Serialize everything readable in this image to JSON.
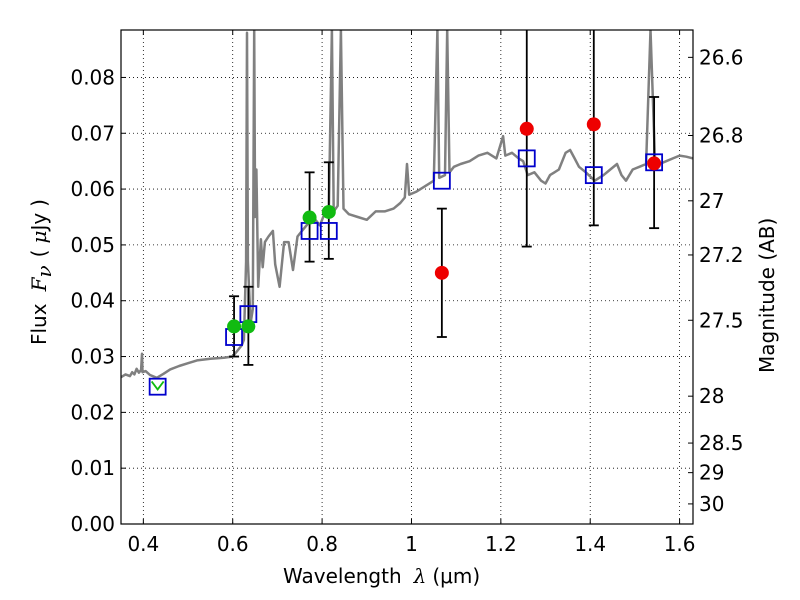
{
  "chart_data": {
    "type": "scatter",
    "xlim": [
      0.35,
      1.63
    ],
    "ylim": [
      0.0,
      0.0885
    ],
    "x_ticks": [
      0.4,
      0.6,
      0.8,
      1.0,
      1.2,
      1.4,
      1.6
    ],
    "x_tick_labels": [
      "0.4",
      "0.6",
      "0.8",
      "1",
      "1.2",
      "1.4",
      "1.6"
    ],
    "y_ticks": [
      0.0,
      0.01,
      0.02,
      0.03,
      0.04,
      0.05,
      0.06,
      0.07,
      0.08
    ],
    "y_tick_labels": [
      "0.00",
      "0.01",
      "0.02",
      "0.03",
      "0.04",
      "0.05",
      "0.06",
      "0.07",
      "0.08"
    ],
    "right_axis": {
      "label": "Magnitude (AB)",
      "ticks": [
        {
          "label": "26.6",
          "flux": 0.0836
        },
        {
          "label": "26.8",
          "flux": 0.0696
        },
        {
          "label": "27",
          "flux": 0.0579
        },
        {
          "label": "27.2",
          "flux": 0.0482
        },
        {
          "label": "27.5",
          "flux": 0.0365
        },
        {
          "label": "28",
          "flux": 0.0229
        },
        {
          "label": "28.5",
          "flux": 0.0145
        },
        {
          "label": "29",
          "flux": 0.0092
        },
        {
          "label": "30",
          "flux": 0.0036
        }
      ]
    },
    "xlabel": {
      "text": "Wavelength",
      "symbol": "λ",
      "unit": "(μm)"
    },
    "ylabel": {
      "text": "Flux",
      "symbol": "F",
      "subscript": "ν",
      "unit_open": "(",
      "unit_mu": "μ",
      "unit": "Jy",
      "unit_close": ")"
    },
    "grid": true,
    "colors": {
      "spectrum": "#808080",
      "model": "#0000cc",
      "green": "#11bb11",
      "red": "#ee0000",
      "errorbar": "#000000"
    },
    "spectrum": [
      [
        0.35,
        0.0263
      ],
      [
        0.36,
        0.0268
      ],
      [
        0.37,
        0.0265
      ],
      [
        0.375,
        0.0272
      ],
      [
        0.38,
        0.0268
      ],
      [
        0.385,
        0.0278
      ],
      [
        0.39,
        0.0271
      ],
      [
        0.395,
        0.0276
      ],
      [
        0.397,
        0.0305
      ],
      [
        0.398,
        0.0272
      ],
      [
        0.405,
        0.0274
      ],
      [
        0.415,
        0.0267
      ],
      [
        0.43,
        0.0262
      ],
      [
        0.445,
        0.0269
      ],
      [
        0.46,
        0.0277
      ],
      [
        0.48,
        0.0283
      ],
      [
        0.5,
        0.0288
      ],
      [
        0.52,
        0.0293
      ],
      [
        0.55,
        0.0296
      ],
      [
        0.58,
        0.0298
      ],
      [
        0.6,
        0.03
      ],
      [
        0.61,
        0.031
      ],
      [
        0.62,
        0.032
      ],
      [
        0.625,
        0.033
      ],
      [
        0.63,
        0.047
      ],
      [
        0.632,
        0.088
      ],
      [
        0.634,
        0.047
      ],
      [
        0.64,
        0.036
      ],
      [
        0.645,
        0.0385
      ],
      [
        0.648,
        0.0885
      ],
      [
        0.65,
        0.055
      ],
      [
        0.653,
        0.0635
      ],
      [
        0.657,
        0.0425
      ],
      [
        0.663,
        0.051
      ],
      [
        0.667,
        0.046
      ],
      [
        0.672,
        0.0505
      ],
      [
        0.68,
        0.0515
      ],
      [
        0.69,
        0.0525
      ],
      [
        0.695,
        0.0465
      ],
      [
        0.705,
        0.0425
      ],
      [
        0.715,
        0.0505
      ],
      [
        0.725,
        0.0505
      ],
      [
        0.735,
        0.0455
      ],
      [
        0.745,
        0.0515
      ],
      [
        0.755,
        0.0525
      ],
      [
        0.765,
        0.0535
      ],
      [
        0.775,
        0.0545
      ],
      [
        0.785,
        0.0545
      ],
      [
        0.795,
        0.0535
      ],
      [
        0.805,
        0.0555
      ],
      [
        0.815,
        0.0558
      ],
      [
        0.822,
        0.0885
      ],
      [
        0.826,
        0.056
      ],
      [
        0.835,
        0.057
      ],
      [
        0.842,
        0.0885
      ],
      [
        0.848,
        0.0565
      ],
      [
        0.86,
        0.0555
      ],
      [
        0.88,
        0.055
      ],
      [
        0.9,
        0.0545
      ],
      [
        0.92,
        0.056
      ],
      [
        0.94,
        0.056
      ],
      [
        0.96,
        0.0565
      ],
      [
        0.975,
        0.0575
      ],
      [
        0.985,
        0.0585
      ],
      [
        0.99,
        0.0645
      ],
      [
        0.995,
        0.059
      ],
      [
        1.01,
        0.0595
      ],
      [
        1.03,
        0.0605
      ],
      [
        1.05,
        0.0615
      ],
      [
        1.058,
        0.0885
      ],
      [
        1.062,
        0.062
      ],
      [
        1.075,
        0.0625
      ],
      [
        1.08,
        0.0885
      ],
      [
        1.085,
        0.063
      ],
      [
        1.095,
        0.064
      ],
      [
        1.11,
        0.0645
      ],
      [
        1.13,
        0.065
      ],
      [
        1.15,
        0.066
      ],
      [
        1.17,
        0.0665
      ],
      [
        1.19,
        0.0655
      ],
      [
        1.205,
        0.0695
      ],
      [
        1.21,
        0.066
      ],
      [
        1.225,
        0.0665
      ],
      [
        1.24,
        0.0655
      ],
      [
        1.25,
        0.065
      ],
      [
        1.26,
        0.0625
      ],
      [
        1.275,
        0.063
      ],
      [
        1.29,
        0.0615
      ],
      [
        1.3,
        0.061
      ],
      [
        1.31,
        0.0625
      ],
      [
        1.32,
        0.063
      ],
      [
        1.33,
        0.0635
      ],
      [
        1.345,
        0.0665
      ],
      [
        1.355,
        0.067
      ],
      [
        1.365,
        0.0655
      ],
      [
        1.375,
        0.064
      ],
      [
        1.39,
        0.063
      ],
      [
        1.41,
        0.0615
      ],
      [
        1.43,
        0.0625
      ],
      [
        1.445,
        0.0635
      ],
      [
        1.46,
        0.0645
      ],
      [
        1.47,
        0.0625
      ],
      [
        1.48,
        0.0615
      ],
      [
        1.495,
        0.0635
      ],
      [
        1.51,
        0.064
      ],
      [
        1.525,
        0.0645
      ],
      [
        1.535,
        0.0885
      ],
      [
        1.545,
        0.065
      ],
      [
        1.555,
        0.0645
      ],
      [
        1.57,
        0.065
      ],
      [
        1.585,
        0.0655
      ],
      [
        1.6,
        0.066
      ],
      [
        1.615,
        0.0658
      ],
      [
        1.63,
        0.0655
      ]
    ],
    "model_points": [
      {
        "x": 0.432,
        "y": 0.0246
      },
      {
        "x": 0.603,
        "y": 0.0335
      },
      {
        "x": 0.635,
        "y": 0.0376
      },
      {
        "x": 0.772,
        "y": 0.0525
      },
      {
        "x": 0.815,
        "y": 0.0525
      },
      {
        "x": 1.068,
        "y": 0.0615
      },
      {
        "x": 1.258,
        "y": 0.0655
      },
      {
        "x": 1.408,
        "y": 0.0625
      },
      {
        "x": 1.543,
        "y": 0.0648
      }
    ],
    "green_points": [
      {
        "x": 0.432,
        "y": 0.025
      },
      {
        "x": 0.603,
        "y": 0.0354,
        "err_lo": 0.03,
        "err_hi": 0.0408
      },
      {
        "x": 0.635,
        "y": 0.0354,
        "err_lo": 0.0285,
        "err_hi": 0.0425
      },
      {
        "x": 0.772,
        "y": 0.0549,
        "err_lo": 0.047,
        "err_hi": 0.063
      },
      {
        "x": 0.815,
        "y": 0.0559,
        "err_lo": 0.0475,
        "err_hi": 0.0648
      }
    ],
    "red_points": [
      {
        "x": 1.068,
        "y": 0.045,
        "err_lo": 0.0335,
        "err_hi": 0.0565
      },
      {
        "x": 1.258,
        "y": 0.0708,
        "err_lo": 0.0497,
        "err_hi": 0.0885
      },
      {
        "x": 1.408,
        "y": 0.0716,
        "err_lo": 0.0535,
        "err_hi": 0.0885
      },
      {
        "x": 1.543,
        "y": 0.0646,
        "err_lo": 0.053,
        "err_hi": 0.0765
      }
    ]
  }
}
